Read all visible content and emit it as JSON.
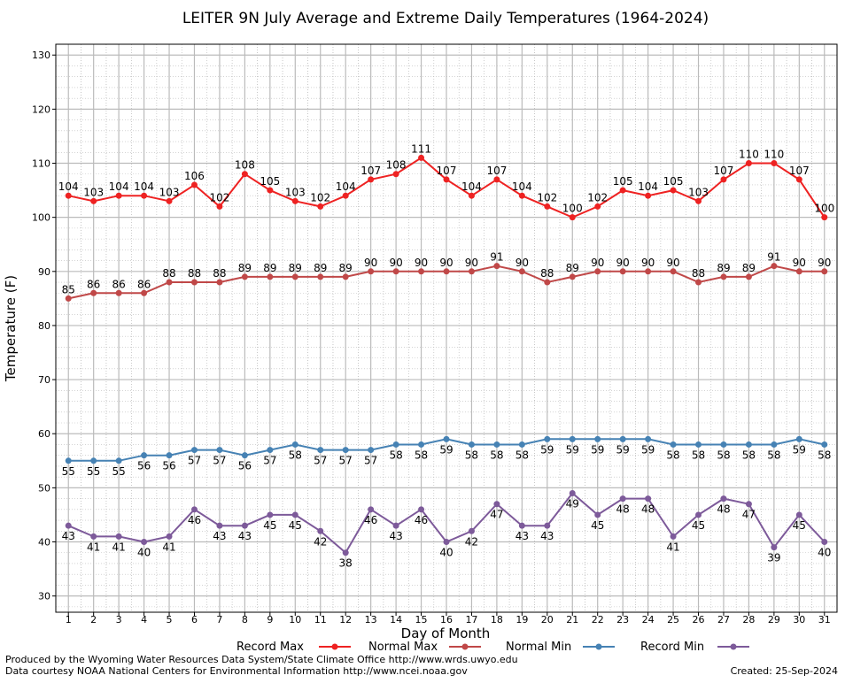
{
  "colors": {
    "record_max": "#ee2222",
    "normal_max": "#c04848",
    "normal_min": "#4682b4",
    "record_min": "#7d5a9a",
    "grid": "#bbbbbb"
  },
  "footer": {
    "line1": "Produced by the Wyoming Water Resources Data System/State Climate Office http://www.wrds.uwyo.edu",
    "line2": "Data courtesy NOAA National Centers for Environmental Information http://www.ncei.noaa.gov",
    "created": "Created:  25-Sep-2024"
  },
  "chart_data": {
    "type": "line",
    "title": "LEITER 9N July Average and Extreme Daily Temperatures (1964-2024)",
    "xlabel": "Day of Month",
    "ylabel": "Temperature (F)",
    "x": [
      1,
      2,
      3,
      4,
      5,
      6,
      7,
      8,
      9,
      10,
      11,
      12,
      13,
      14,
      15,
      16,
      17,
      18,
      19,
      20,
      21,
      22,
      23,
      24,
      25,
      26,
      27,
      28,
      29,
      30,
      31
    ],
    "xlim": [
      0.5,
      31.5
    ],
    "ylim": [
      27,
      132
    ],
    "yticks": [
      30,
      40,
      50,
      60,
      70,
      80,
      90,
      100,
      110,
      120,
      130
    ],
    "grid": true,
    "legend_position": "bottom",
    "series": [
      {
        "name": "Record Max",
        "values": [
          104,
          103,
          104,
          104,
          103,
          106,
          102,
          108,
          105,
          103,
          102,
          104,
          107,
          108,
          111,
          107,
          104,
          107,
          104,
          102,
          100,
          102,
          105,
          104,
          105,
          103,
          107,
          110,
          110,
          107,
          100
        ]
      },
      {
        "name": "Normal Max",
        "values": [
          85,
          86,
          86,
          86,
          88,
          88,
          88,
          89,
          89,
          89,
          89,
          89,
          90,
          90,
          90,
          90,
          90,
          91,
          90,
          88,
          89,
          90,
          90,
          90,
          90,
          88,
          89,
          89,
          91,
          90,
          90
        ]
      },
      {
        "name": "Normal Min",
        "values": [
          55,
          55,
          55,
          56,
          56,
          57,
          57,
          56,
          57,
          58,
          57,
          57,
          57,
          58,
          58,
          59,
          58,
          58,
          58,
          59,
          59,
          59,
          59,
          59,
          58,
          58,
          58,
          58,
          58,
          59,
          58
        ]
      },
      {
        "name": "Record Min",
        "values": [
          43,
          41,
          41,
          40,
          41,
          46,
          43,
          43,
          45,
          45,
          42,
          38,
          46,
          43,
          46,
          40,
          42,
          47,
          43,
          43,
          49,
          45,
          48,
          48,
          41,
          45,
          48,
          47,
          39,
          45,
          40
        ]
      }
    ]
  }
}
